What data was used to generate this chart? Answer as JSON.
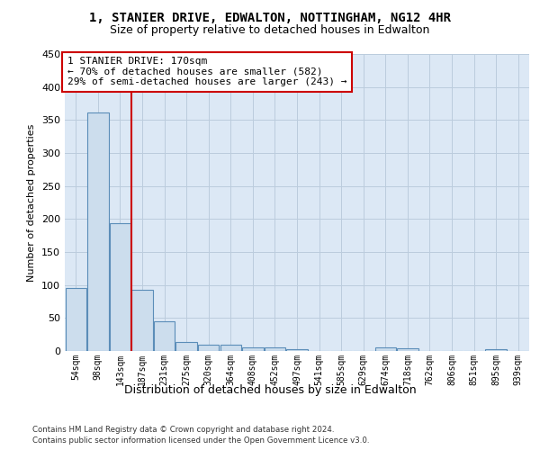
{
  "title": "1, STANIER DRIVE, EDWALTON, NOTTINGHAM, NG12 4HR",
  "subtitle": "Size of property relative to detached houses in Edwalton",
  "xlabel": "Distribution of detached houses by size in Edwalton",
  "ylabel": "Number of detached properties",
  "footer_line1": "Contains HM Land Registry data © Crown copyright and database right 2024.",
  "footer_line2": "Contains public sector information licensed under the Open Government Licence v3.0.",
  "bin_labels": [
    "54sqm",
    "98sqm",
    "143sqm",
    "187sqm",
    "231sqm",
    "275sqm",
    "320sqm",
    "364sqm",
    "408sqm",
    "452sqm",
    "497sqm",
    "541sqm",
    "585sqm",
    "629sqm",
    "674sqm",
    "718sqm",
    "762sqm",
    "806sqm",
    "851sqm",
    "895sqm",
    "939sqm"
  ],
  "bar_values": [
    95,
    362,
    193,
    93,
    45,
    14,
    10,
    10,
    6,
    5,
    3,
    0,
    0,
    0,
    5,
    4,
    0,
    0,
    0,
    3,
    0
  ],
  "bar_color": "#ccdded",
  "bar_edge_color": "#5b8db8",
  "grid_color": "#bbccdd",
  "background_color": "#dce8f5",
  "plot_bg_color": "#dce8f5",
  "red_line_color": "#cc0000",
  "annotation_text_line1": "1 STANIER DRIVE: 170sqm",
  "annotation_text_line2": "← 70% of detached houses are smaller (582)",
  "annotation_text_line3": "29% of semi-detached houses are larger (243) →",
  "annotation_box_facecolor": "#ffffff",
  "annotation_box_edge": "#cc0000",
  "ylim": [
    0,
    450
  ],
  "yticks": [
    0,
    50,
    100,
    150,
    200,
    250,
    300,
    350,
    400,
    450
  ],
  "red_line_x": 2.5,
  "title_fontsize": 10,
  "subtitle_fontsize": 9,
  "ylabel_fontsize": 8,
  "xlabel_fontsize": 9,
  "ytick_fontsize": 8,
  "xtick_fontsize": 7,
  "annotation_fontsize": 8
}
